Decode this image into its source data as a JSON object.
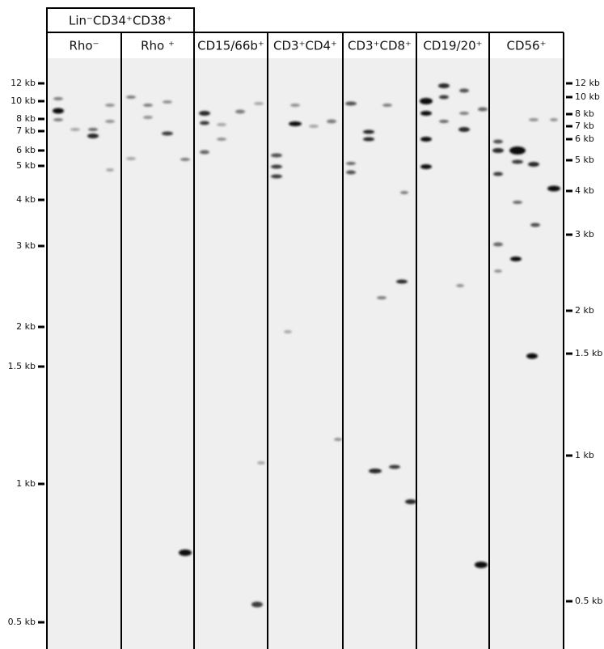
{
  "header": {
    "group_label": "Lin⁻CD34⁺CD38⁺"
  },
  "lanes": [
    "Rho⁻",
    "Rho ⁺",
    "CD15/66b⁺",
    "CD3⁺CD4⁺",
    "CD3⁺CD8⁺",
    "CD19/20⁺",
    "CD56⁺"
  ],
  "left_markers": [
    "12 kb",
    "10 kb",
    "8 kb",
    "7 kb",
    "6 kb",
    "5 kb",
    "4 kb",
    "3 kb",
    "2 kb",
    "1.5 kb",
    "1 kb",
    "0.5 kb"
  ],
  "right_markers": [
    "12 kb",
    "10 kb",
    "8 kb",
    "7 kb",
    "6 kb",
    "5 kb",
    "4 kb",
    "3 kb",
    "2 kb",
    "1.5 kb",
    "1 kb",
    "0.5 kb"
  ]
}
